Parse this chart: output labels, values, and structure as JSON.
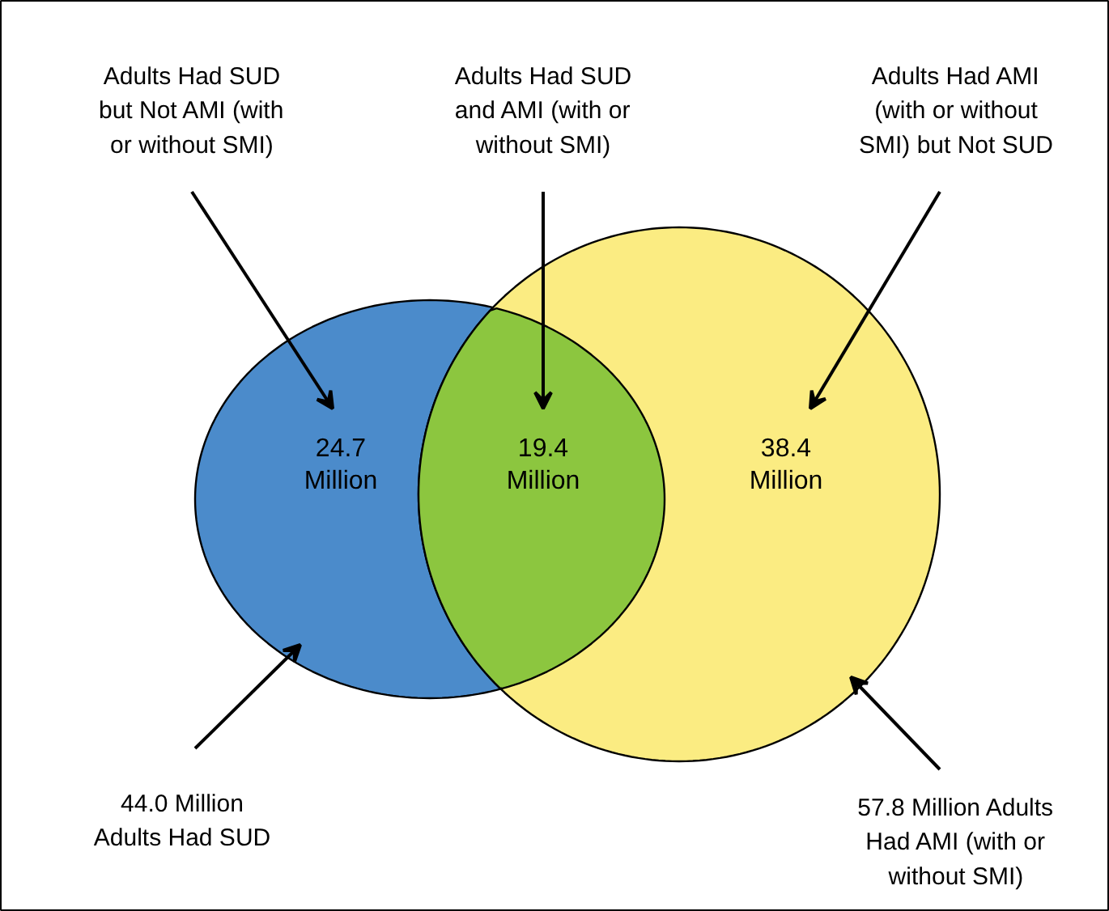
{
  "chart_data": {
    "type": "other",
    "categories": [
      "Adults Had SUD but Not AMI (with or without SMI)",
      "Adults Had SUD and AMI (with or without SMI)",
      "Adults Had AMI (with or without SMI) but Not SUD"
    ],
    "values": [
      24.7,
      19.4,
      38.4
    ],
    "value_labels": [
      "24.7 Million",
      "19.4 Million",
      "38.4 Million"
    ],
    "colors": [
      "#4b8bcb",
      "#8cc63f",
      "#fbec82"
    ],
    "annotations": [
      "44.0 Million Adults Had SUD",
      "57.8 Million Adults Had AMI (with or without SMI)"
    ]
  }
}
